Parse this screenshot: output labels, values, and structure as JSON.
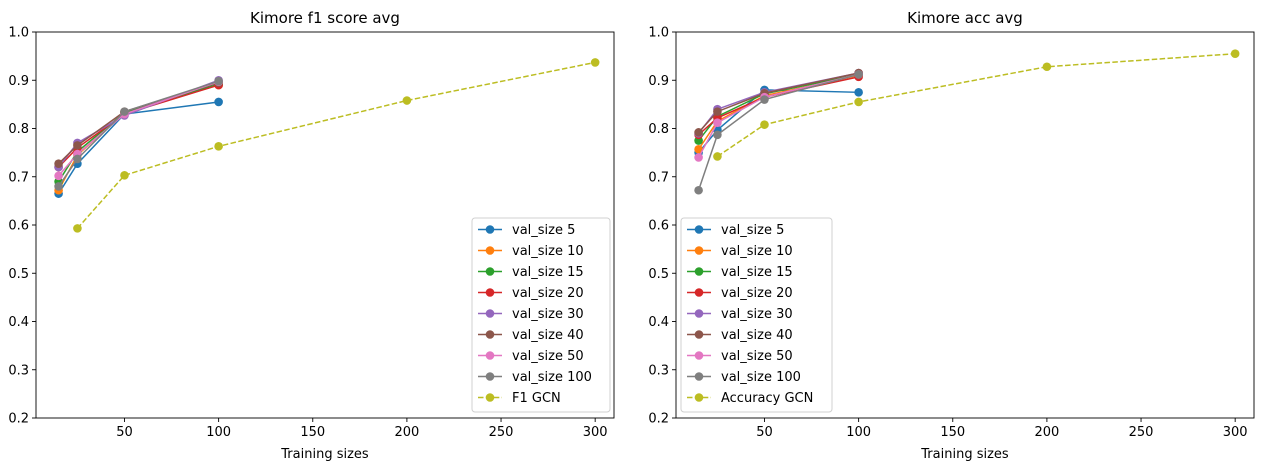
{
  "chart_data": [
    {
      "type": "line",
      "title": "Kimore f1 score avg",
      "xlabel": "Training sizes",
      "ylabel": "",
      "xlim": [
        3,
        310
      ],
      "ylim": [
        0.2,
        1.0
      ],
      "xticks": [
        50,
        100,
        150,
        200,
        250,
        300
      ],
      "yticks": [
        0.2,
        0.3,
        0.4,
        0.5,
        0.6,
        0.7,
        0.8,
        0.9,
        1.0
      ],
      "xtick_labels": [
        "50",
        "100",
        "150",
        "200",
        "250",
        "300"
      ],
      "ytick_labels": [
        "0.2",
        "0.3",
        "0.4",
        "0.5",
        "0.6",
        "0.7",
        "0.8",
        "0.9",
        "1.0"
      ],
      "legend_position": "lower-right",
      "series": [
        {
          "name": "val_size 5",
          "color": "#1f77b4",
          "style": "solid",
          "x": [
            15,
            25,
            50,
            100
          ],
          "y": [
            0.665,
            0.727,
            0.83,
            0.855
          ]
        },
        {
          "name": "val_size 10",
          "color": "#ff7f0e",
          "style": "solid",
          "x": [
            15,
            25,
            50,
            100
          ],
          "y": [
            0.672,
            0.745,
            0.833,
            0.89
          ]
        },
        {
          "name": "val_size 15",
          "color": "#2ca02c",
          "style": "solid",
          "x": [
            15,
            25,
            50,
            100
          ],
          "y": [
            0.69,
            0.752,
            0.833,
            0.892
          ]
        },
        {
          "name": "val_size 20",
          "color": "#d62728",
          "style": "solid",
          "x": [
            15,
            25,
            50,
            100
          ],
          "y": [
            0.72,
            0.76,
            0.83,
            0.89
          ]
        },
        {
          "name": "val_size 30",
          "color": "#9467bd",
          "style": "solid",
          "x": [
            15,
            25,
            50,
            100
          ],
          "y": [
            0.72,
            0.77,
            0.827,
            0.9
          ]
        },
        {
          "name": "val_size 40",
          "color": "#8c564b",
          "style": "solid",
          "x": [
            15,
            25,
            50,
            100
          ],
          "y": [
            0.727,
            0.765,
            0.835,
            0.895
          ]
        },
        {
          "name": "val_size 50",
          "color": "#e377c2",
          "style": "solid",
          "x": [
            15,
            25,
            50,
            100
          ],
          "y": [
            0.702,
            0.747,
            0.83,
            0.897
          ]
        },
        {
          "name": "val_size 100",
          "color": "#7f7f7f",
          "style": "solid",
          "x": [
            15,
            25,
            50,
            100
          ],
          "y": [
            0.68,
            0.737,
            0.835,
            0.898
          ]
        },
        {
          "name": "F1 GCN",
          "color": "#bcbd22",
          "style": "dashed",
          "x": [
            25,
            50,
            100,
            200,
            300
          ],
          "y": [
            0.593,
            0.703,
            0.763,
            0.858,
            0.937
          ]
        }
      ]
    },
    {
      "type": "line",
      "title": "Kimore acc avg",
      "xlabel": "Training sizes",
      "ylabel": "",
      "xlim": [
        3,
        310
      ],
      "ylim": [
        0.2,
        1.0
      ],
      "xticks": [
        50,
        100,
        150,
        200,
        250,
        300
      ],
      "yticks": [
        0.2,
        0.3,
        0.4,
        0.5,
        0.6,
        0.7,
        0.8,
        0.9,
        1.0
      ],
      "xtick_labels": [
        "50",
        "100",
        "150",
        "200",
        "250",
        "300"
      ],
      "ytick_labels": [
        "0.2",
        "0.3",
        "0.4",
        "0.5",
        "0.6",
        "0.7",
        "0.8",
        "0.9",
        "1.0"
      ],
      "legend_position": "lower-left",
      "series": [
        {
          "name": "val_size 5",
          "color": "#1f77b4",
          "style": "solid",
          "x": [
            15,
            25,
            50,
            100
          ],
          "y": [
            0.75,
            0.797,
            0.88,
            0.875
          ]
        },
        {
          "name": "val_size 10",
          "color": "#ff7f0e",
          "style": "solid",
          "x": [
            15,
            25,
            50,
            100
          ],
          "y": [
            0.757,
            0.815,
            0.868,
            0.91
          ]
        },
        {
          "name": "val_size 15",
          "color": "#2ca02c",
          "style": "solid",
          "x": [
            15,
            25,
            50,
            100
          ],
          "y": [
            0.775,
            0.825,
            0.872,
            0.912
          ]
        },
        {
          "name": "val_size 20",
          "color": "#d62728",
          "style": "solid",
          "x": [
            15,
            25,
            50,
            100
          ],
          "y": [
            0.787,
            0.822,
            0.865,
            0.907
          ]
        },
        {
          "name": "val_size 30",
          "color": "#9467bd",
          "style": "solid",
          "x": [
            15,
            25,
            50,
            100
          ],
          "y": [
            0.79,
            0.84,
            0.875,
            0.915
          ]
        },
        {
          "name": "val_size 40",
          "color": "#8c564b",
          "style": "solid",
          "x": [
            15,
            25,
            50,
            100
          ],
          "y": [
            0.792,
            0.835,
            0.873,
            0.915
          ]
        },
        {
          "name": "val_size 50",
          "color": "#e377c2",
          "style": "solid",
          "x": [
            15,
            25,
            50,
            100
          ],
          "y": [
            0.74,
            0.812,
            0.865,
            0.912
          ]
        },
        {
          "name": "val_size 100",
          "color": "#7f7f7f",
          "style": "solid",
          "x": [
            15,
            25,
            50,
            100
          ],
          "y": [
            0.672,
            0.787,
            0.86,
            0.912
          ]
        },
        {
          "name": "Accuracy GCN",
          "color": "#bcbd22",
          "style": "dashed",
          "x": [
            25,
            50,
            100,
            200,
            300
          ],
          "y": [
            0.742,
            0.808,
            0.855,
            0.928,
            0.955
          ]
        }
      ]
    }
  ]
}
